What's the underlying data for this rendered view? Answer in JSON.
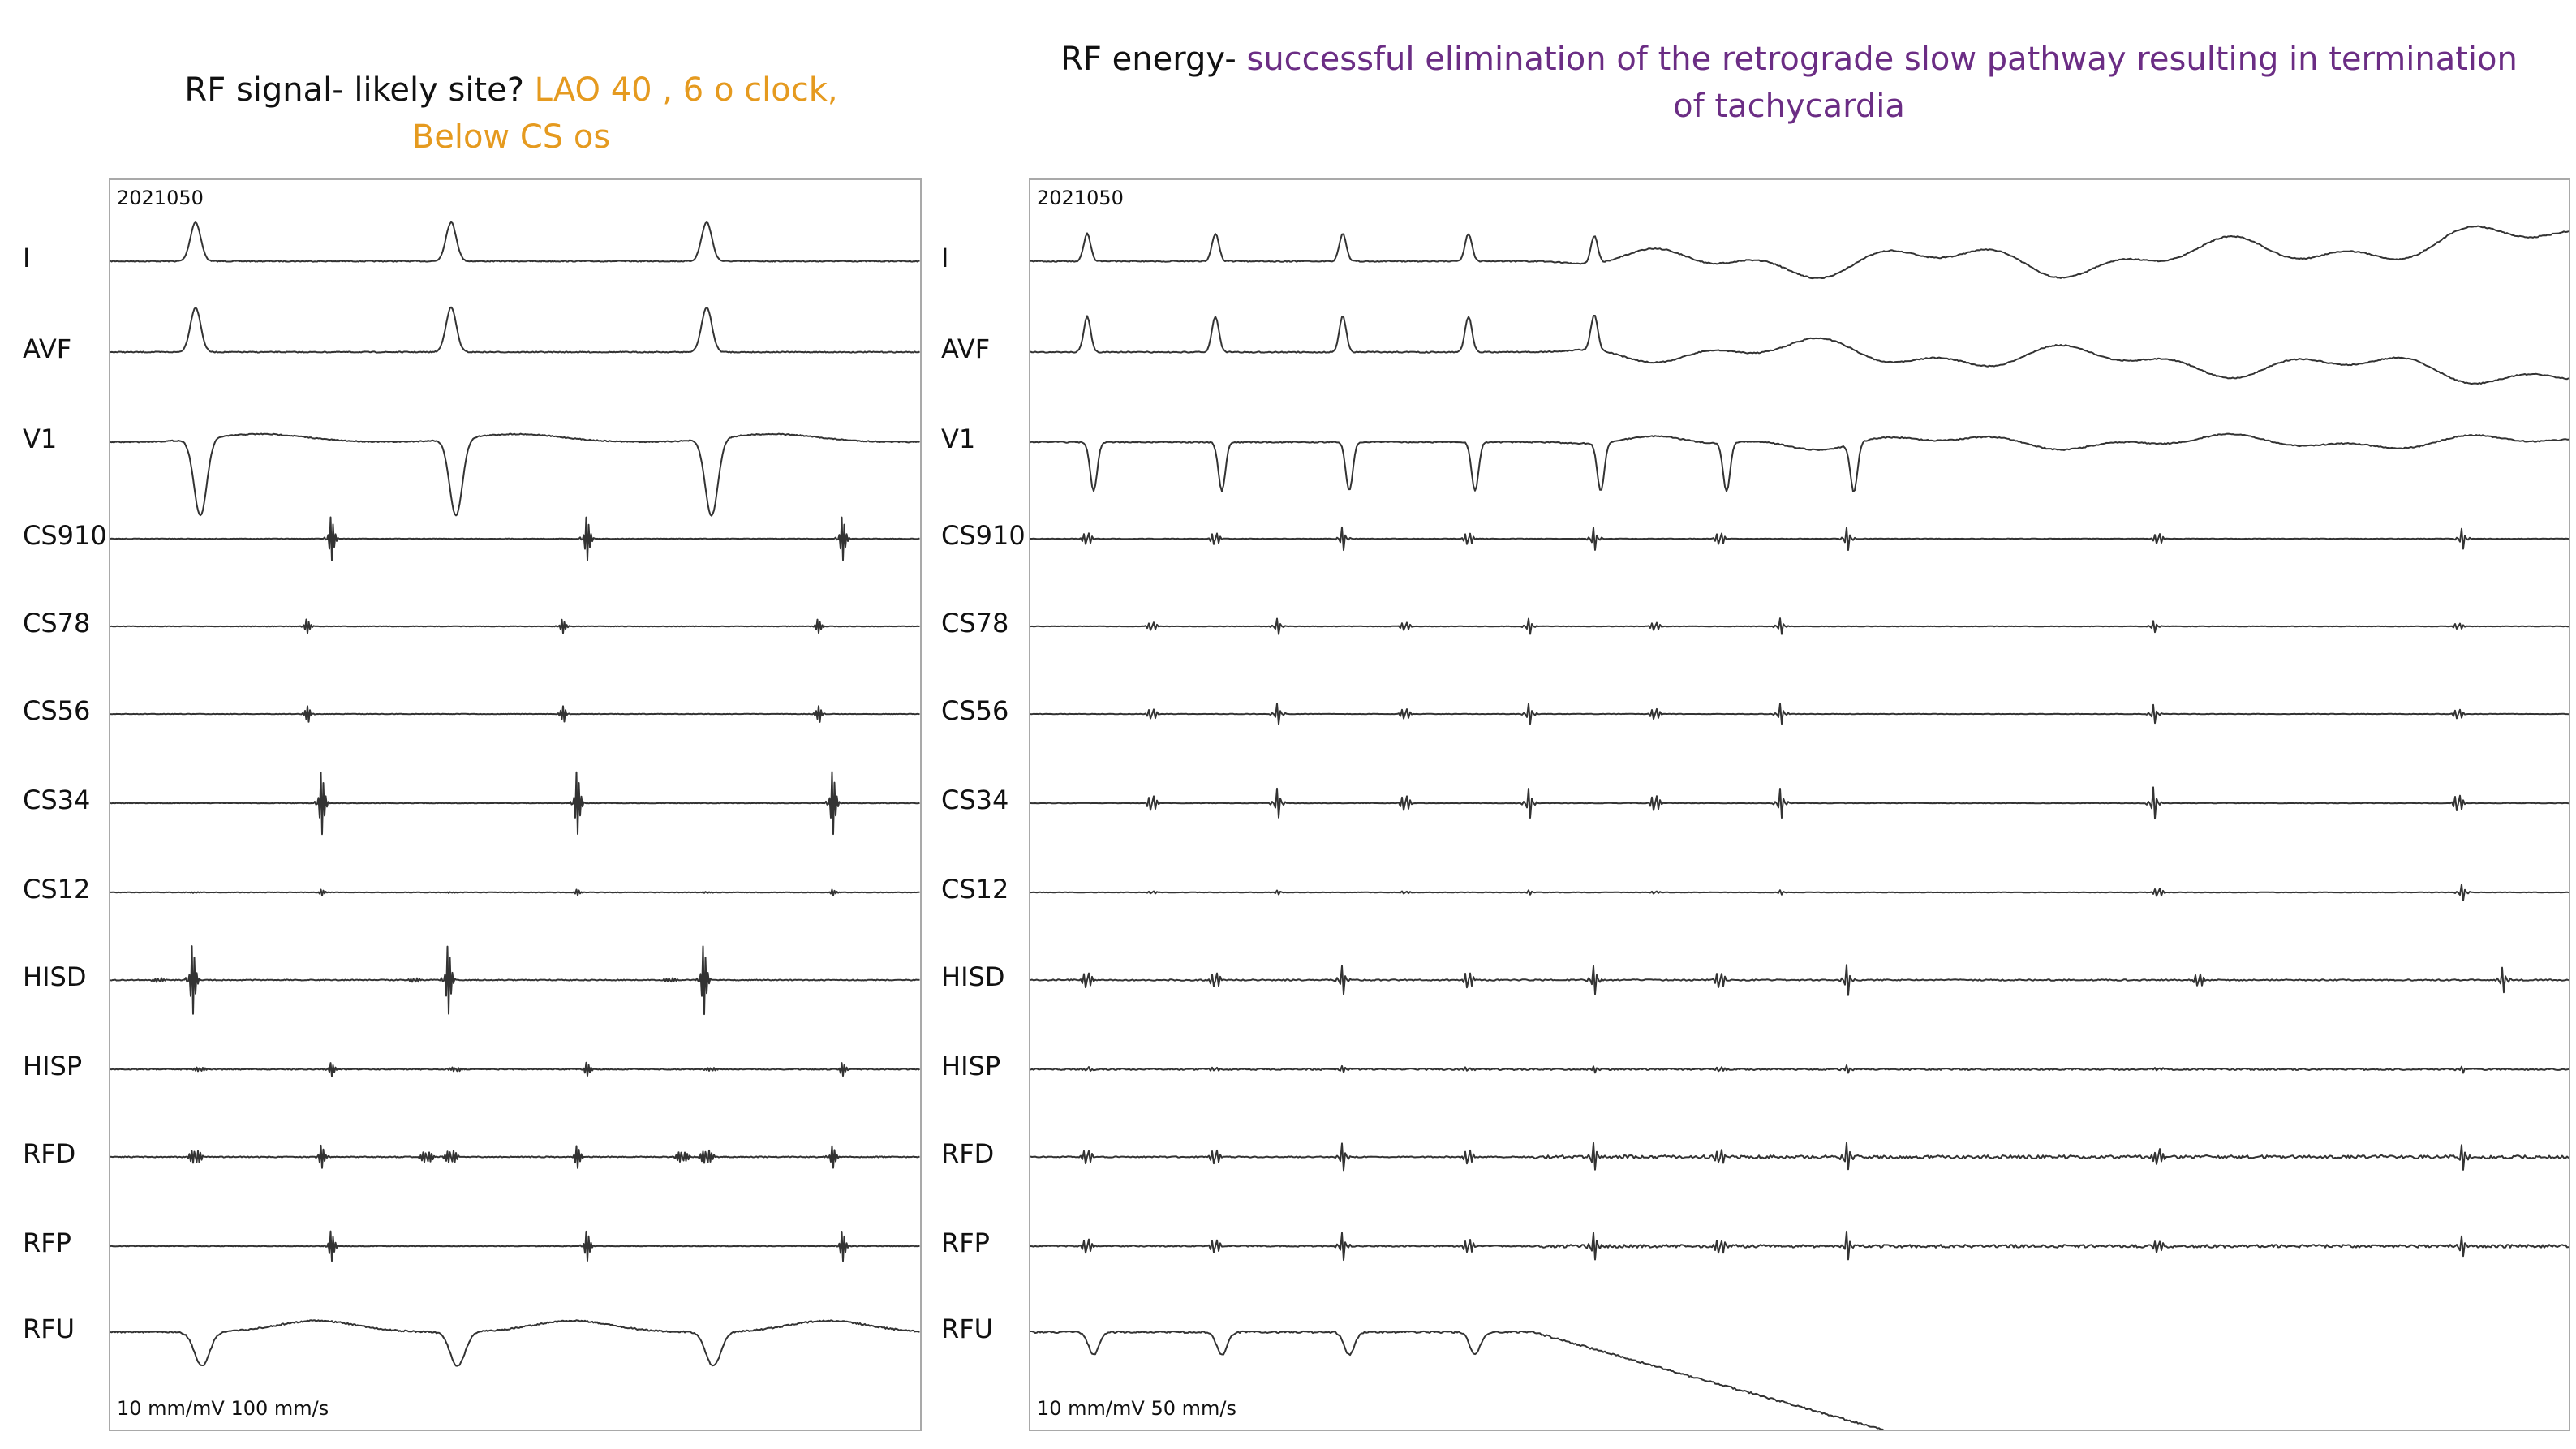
{
  "left_title": {
    "black": "RF signal- likely site? ",
    "orange_line1": "LAO 40 , 6 o clock,",
    "orange_line2": "Below CS os"
  },
  "right_title": {
    "black": "RF energy- ",
    "purple_line1": "successful elimination of the retrograde slow pathway resulting in termination",
    "purple_line2": "of tachycardia"
  },
  "left_panel": {
    "case_id": "2021050",
    "scale": "10 mm/mV   100 mm/s"
  },
  "right_panel": {
    "case_id": "2021050",
    "scale": "10 mm/mV   50 mm/s"
  },
  "channels": [
    "I",
    "AVF",
    "V1",
    "CS910",
    "CS78",
    "CS56",
    "CS34",
    "CS12",
    "HISD",
    "HISP",
    "RFD",
    "RFP",
    "RFU"
  ],
  "colors": {
    "orange": "#e59a1f",
    "purple": "#6b2d84",
    "trace": "#333333",
    "frame": "#a9a9a9"
  }
}
